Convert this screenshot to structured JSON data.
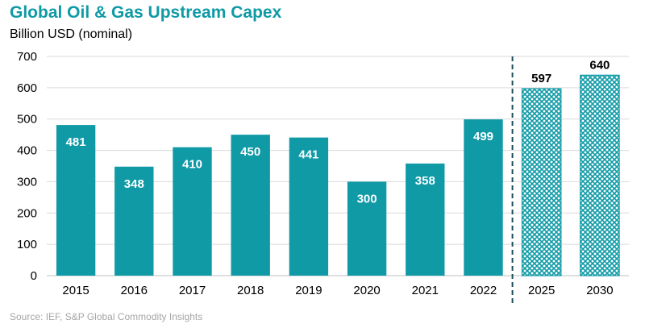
{
  "title": "Global Oil & Gas Upstream Capex",
  "subtitle": "Billion USD (nominal)",
  "source": "Source: IEF, S&P Global Commodity Insights",
  "colors": {
    "bar": "#0f9aa6",
    "title": "#0f9aa6",
    "grid": "#d9d9d9",
    "divider": "#1f4e5a"
  },
  "chart_data": {
    "type": "bar",
    "categories": [
      "2015",
      "2016",
      "2017",
      "2018",
      "2019",
      "2020",
      "2021",
      "2022",
      "2025",
      "2030"
    ],
    "values": [
      481,
      348,
      410,
      450,
      441,
      300,
      358,
      499,
      597,
      640
    ],
    "projected": [
      false,
      false,
      false,
      false,
      false,
      false,
      false,
      false,
      true,
      true
    ],
    "title": "Global Oil & Gas Upstream Capex",
    "ylabel": "Billion USD (nominal)",
    "ylim": [
      0,
      700
    ],
    "yticks": [
      0,
      100,
      200,
      300,
      400,
      500,
      600,
      700
    ],
    "grid": true,
    "legend": "none"
  }
}
